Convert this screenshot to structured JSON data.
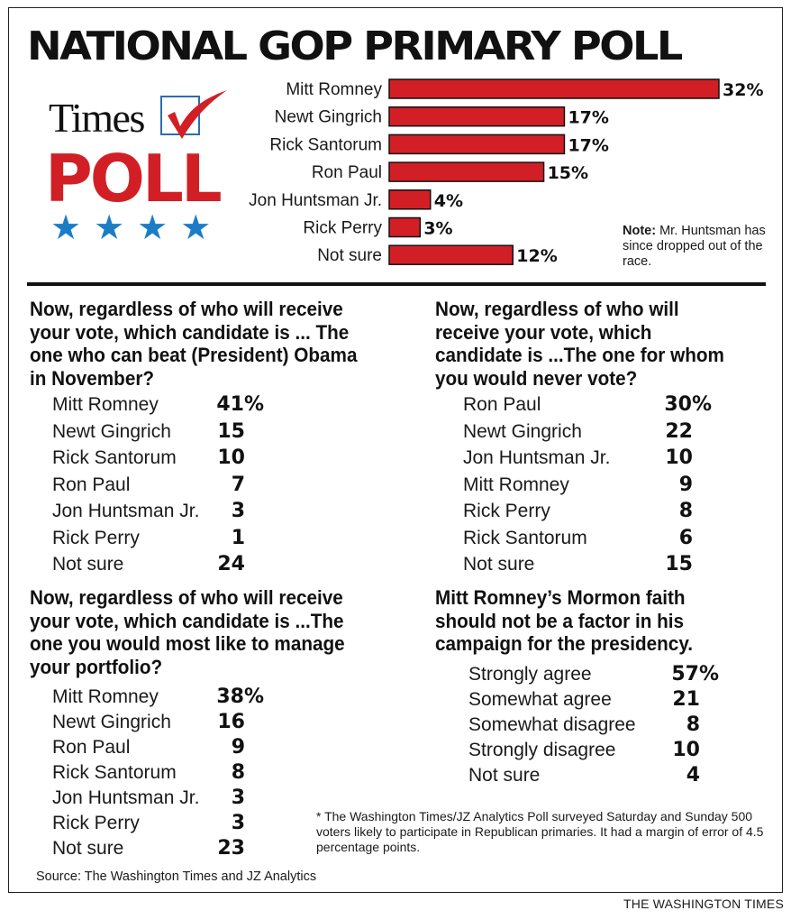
{
  "title": "NATIONAL GOP PRIMARY POLL",
  "logo": {
    "brand": "Times",
    "word": "POLL",
    "stars": "★★★★",
    "check_icon": "checkmark-icon",
    "star_icon": "star-icon"
  },
  "colors": {
    "bar": "#d21f26",
    "accent_blue": "#1b7dc6",
    "text": "#111111"
  },
  "chart_data": {
    "type": "bar",
    "orientation": "horizontal",
    "categories": [
      "Mitt Romney",
      "Newt Gingrich",
      "Rick Santorum",
      "Ron Paul",
      "Jon Huntsman Jr.",
      "Rick Perry",
      "Not sure"
    ],
    "values": [
      32,
      17,
      17,
      15,
      4,
      3,
      12
    ],
    "value_labels": [
      "32%",
      "17%",
      "17%",
      "15%",
      "4%",
      "3%",
      "12%"
    ],
    "title": "NATIONAL GOP PRIMARY POLL",
    "xlim": [
      0,
      32
    ],
    "grid": false
  },
  "note": {
    "label": "Note:",
    "text": " Mr. Huntsman has since dropped out of the race."
  },
  "sections": [
    {
      "question": "Now, regardless of who will receive your vote, which candidate is ... The one who can beat (President) Obama in November?",
      "rows": [
        {
          "name": "Mitt Romney",
          "value": "41%"
        },
        {
          "name": "Newt Gingrich",
          "value": "15"
        },
        {
          "name": "Rick Santorum",
          "value": "10"
        },
        {
          "name": "Ron Paul",
          "value": "7"
        },
        {
          "name": "Jon Huntsman Jr.",
          "value": "3"
        },
        {
          "name": "Rick Perry",
          "value": "1"
        },
        {
          "name": "Not sure",
          "value": "24"
        }
      ]
    },
    {
      "question": "Now, regardless of who will receive your vote, which candidate is ...The one for whom you would never vote?",
      "rows": [
        {
          "name": "Ron Paul",
          "value": "30%"
        },
        {
          "name": "Newt Gingrich",
          "value": "22"
        },
        {
          "name": "Jon Huntsman Jr.",
          "value": "10"
        },
        {
          "name": "Mitt Romney",
          "value": "9"
        },
        {
          "name": "Rick Perry",
          "value": "8"
        },
        {
          "name": "Rick Santorum",
          "value": "6"
        },
        {
          "name": "Not sure",
          "value": "15"
        }
      ]
    },
    {
      "question": "Now, regardless of who will receive your vote, which candidate is ...The one you would most like to manage your portfolio?",
      "rows": [
        {
          "name": "Mitt Romney",
          "value": "38%"
        },
        {
          "name": "Newt Gingrich",
          "value": "16"
        },
        {
          "name": "Ron Paul",
          "value": "9"
        },
        {
          "name": "Rick Santorum",
          "value": "8"
        },
        {
          "name": "Jon Huntsman Jr.",
          "value": "3"
        },
        {
          "name": "Rick Perry",
          "value": "3"
        },
        {
          "name": "Not sure",
          "value": "23"
        }
      ]
    },
    {
      "question": "Mitt Romney’s Mormon faith should not be a factor in his campaign for the presidency.",
      "rows": [
        {
          "name": "Strongly agree",
          "value": "57%"
        },
        {
          "name": "Somewhat agree",
          "value": "21"
        },
        {
          "name": "Somewhat disagree",
          "value": "8"
        },
        {
          "name": "Strongly disagree",
          "value": "10"
        },
        {
          "name": "Not sure",
          "value": "4"
        }
      ]
    }
  ],
  "footnote": "* The Washington Times/JZ Analytics Poll surveyed Saturday and Sunday 500 voters likely to participate in Republican primaries. It had a margin of error of 4.5 percentage points.",
  "source": "Source: The Washington Times and JZ Analytics",
  "credit": "THE WASHINGTON TIMES"
}
